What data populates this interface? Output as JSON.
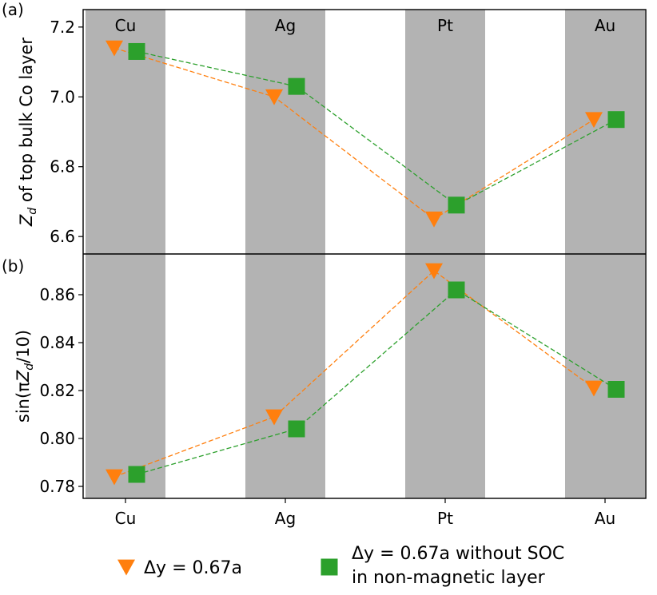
{
  "chart_data": [
    {
      "type": "line",
      "panel_label": "(a)",
      "ylabel": "Z_d of top bulk Co layer",
      "ylim": [
        6.55,
        7.25
      ],
      "yticks": [
        "6.6",
        "6.8",
        "7.0",
        "7.2"
      ],
      "categories": [
        "Cu",
        "Ag",
        "Pt",
        "Au"
      ],
      "series": [
        {
          "name": "Δy = 0.67a",
          "marker": "triangle-down",
          "color": "#ff7f0e",
          "values": [
            7.14,
            7.0,
            6.65,
            6.935
          ]
        },
        {
          "name": "Δy = 0.67a without SOC in non-magnetic layer",
          "marker": "square",
          "color": "#2ca02c",
          "values": [
            7.13,
            7.03,
            6.69,
            6.935
          ]
        }
      ]
    },
    {
      "type": "line",
      "panel_label": "(b)",
      "ylabel": "sin(πZ_d/10)",
      "ylim": [
        0.775,
        0.877
      ],
      "yticks": [
        "0.78",
        "0.80",
        "0.82",
        "0.84",
        "0.86"
      ],
      "categories": [
        "Cu",
        "Ag",
        "Pt",
        "Au"
      ],
      "series": [
        {
          "name": "Δy = 0.67a",
          "marker": "triangle-down",
          "color": "#ff7f0e",
          "values": [
            0.784,
            0.809,
            0.87,
            0.821
          ]
        },
        {
          "name": "Δy = 0.67a without SOC in non-magnetic layer",
          "marker": "square",
          "color": "#2ca02c",
          "values": [
            0.785,
            0.804,
            0.862,
            0.8205
          ]
        }
      ]
    }
  ],
  "legend": {
    "item1": "Δy = 0.67a",
    "item2_line1": "Δy = 0.67a without SOC",
    "item2_line2": "in non-magnetic layer"
  },
  "colors": {
    "band": "#b3b3b3",
    "orange": "#ff7f0e",
    "green": "#2ca02c"
  }
}
